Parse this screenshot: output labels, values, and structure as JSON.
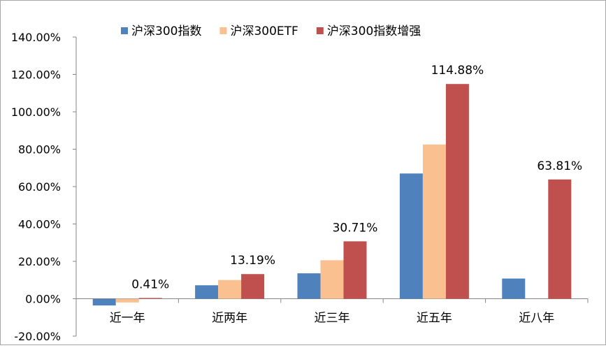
{
  "chart_data": {
    "type": "bar",
    "categories": [
      "近一年",
      "近两年",
      "近三年",
      "近五年",
      "近八年"
    ],
    "series": [
      {
        "name": "沪深300指数",
        "color": "#4f81bd",
        "values": [
          -3.6,
          7.2,
          13.6,
          67.0,
          10.8
        ]
      },
      {
        "name": "沪深300ETF",
        "color": "#fac090",
        "values": [
          -2.0,
          10.0,
          20.6,
          82.5,
          null
        ]
      },
      {
        "name": "沪深300指数增强",
        "color": "#c0504d",
        "values": [
          0.41,
          13.19,
          30.71,
          114.88,
          63.81
        ]
      }
    ],
    "data_labels": [
      "0.41%",
      "13.19%",
      "30.71%",
      "114.88%",
      "63.81%"
    ],
    "ylim": [
      -20,
      140
    ],
    "y_ticks": [
      -20,
      0,
      20,
      40,
      60,
      80,
      100,
      120,
      140
    ],
    "y_tick_labels": [
      "-20.00%",
      "0.00%",
      "20.00%",
      "40.00%",
      "60.00%",
      "80.00%",
      "100.00%",
      "120.00%",
      "140.00%"
    ],
    "grid": false,
    "legend_position": "top"
  }
}
